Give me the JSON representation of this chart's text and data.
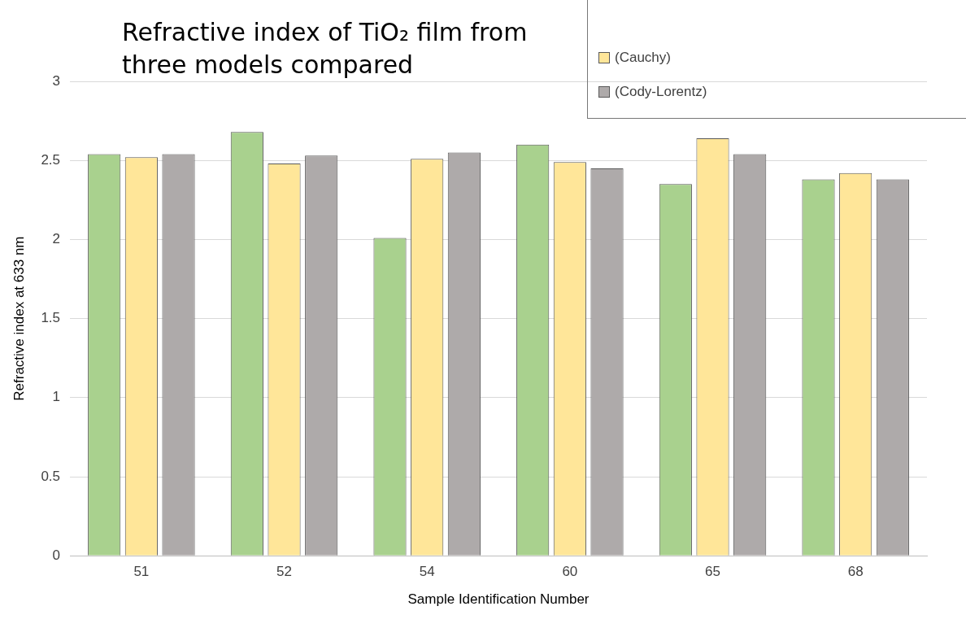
{
  "chart_data": {
    "type": "bar",
    "title": "Refractive index of TiO₂ film from three models compared",
    "xlabel": "Sample Identification Number",
    "ylabel": "Refractive index at 633 nm",
    "categories": [
      "51",
      "52",
      "54",
      "60",
      "65",
      "68"
    ],
    "series": [
      {
        "color": "#a9d18e",
        "values": [
          2.54,
          2.68,
          2.01,
          2.6,
          2.35,
          2.38
        ]
      },
      {
        "name": "(Cauchy)",
        "color": "#ffe699",
        "values": [
          2.52,
          2.48,
          2.51,
          2.49,
          2.64,
          2.42
        ]
      },
      {
        "name": "(Cody-Lorentz)",
        "color": "#aeaaaa",
        "values": [
          2.54,
          2.53,
          2.55,
          2.45,
          2.54,
          2.38
        ]
      }
    ],
    "ylim": [
      0,
      3
    ],
    "yticks": [
      0,
      0.5,
      1,
      1.5,
      2,
      2.5,
      3
    ],
    "grid": "y",
    "legend": "top right"
  }
}
